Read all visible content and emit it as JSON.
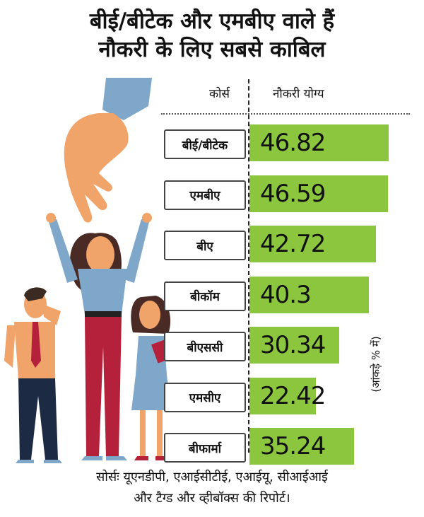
{
  "title": {
    "line1": "बीई/बीटेक और एमबीए वाले हैं",
    "line2": "नौकरी के लिए सबसे काबिल"
  },
  "columns": {
    "course": "कोर्स",
    "employable": "नौकरी योग्य"
  },
  "unit_note": "(आंकड़े % में)",
  "source": {
    "line1": "सोर्सः यूएनडीपी, एआईसीटीई, एआईयू, सीआईआई",
    "line2": "और टैग्ड और व्हीबॉक्स की रिपोर्ट।"
  },
  "colors": {
    "bar": "#8cc63f",
    "skin": "#f0a469",
    "shirt_blue": "#7fa7c9",
    "skirt_red": "#b5213a"
  },
  "chart_data": {
    "type": "bar",
    "orientation": "horizontal",
    "title": "बीई/बीटेक और एमबीए वाले हैं नौकरी के लिए सबसे काबिल",
    "categories": [
      "बीई/बीटेक",
      "एमबीए",
      "बीए",
      "बीकॉम",
      "बीएससी",
      "एमसीए",
      "बीफार्मा"
    ],
    "values": [
      46.82,
      46.59,
      42.72,
      40.3,
      30.34,
      22.42,
      35.24
    ],
    "value_labels": [
      "46.82",
      "46.59",
      "42.72",
      "40.3",
      "30.34",
      "22.42",
      "35.24"
    ],
    "xlim": [
      0,
      55
    ],
    "grid": false,
    "legend": "none"
  }
}
